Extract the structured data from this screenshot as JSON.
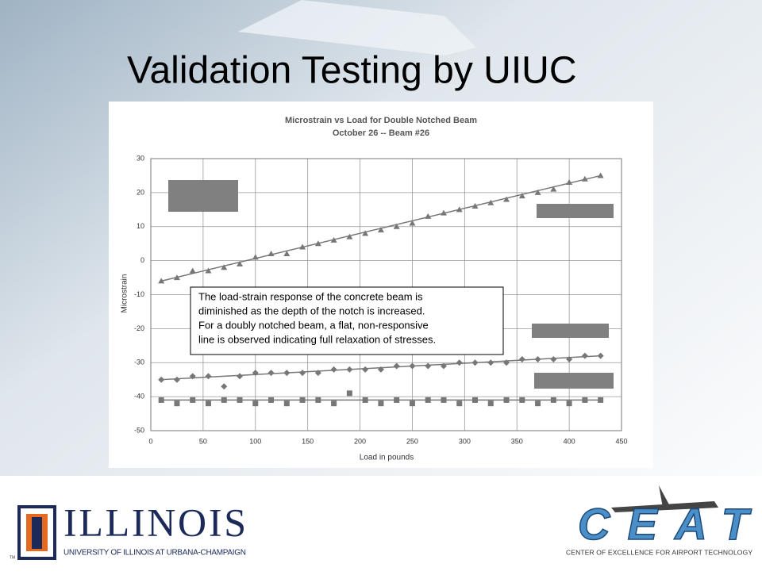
{
  "slide": {
    "title": "Validation Testing by UIUC"
  },
  "chart_data": {
    "type": "scatter",
    "title": "Microstrain vs Load for Double Notched Beam",
    "subtitle": "October 26 -- Beam #26",
    "x_label": "Load in pounds",
    "y_label": "Microstrain",
    "x": [
      10,
      25,
      40,
      55,
      70,
      85,
      100,
      115,
      130,
      145,
      160,
      175,
      190,
      205,
      220,
      235,
      250,
      265,
      280,
      295,
      310,
      325,
      340,
      355,
      370,
      385,
      400,
      415,
      430
    ],
    "series": [
      {
        "color": "#777777",
        "marker": "triangle",
        "values": [
          -6,
          -5,
          -3,
          -3,
          -2,
          -1,
          1,
          2,
          2,
          4,
          5,
          6,
          7,
          8,
          9,
          10,
          11,
          13,
          14,
          15,
          16,
          17,
          18,
          19,
          20,
          21,
          23,
          24,
          25
        ],
        "trend": [
          -6,
          25
        ]
      },
      {
        "color": "#777777",
        "marker": "diamond",
        "values": [
          -35,
          -35,
          -34,
          -34,
          -37,
          -34,
          -33,
          -33,
          -33,
          -33,
          -33,
          -32,
          -32,
          -32,
          -32,
          -31,
          -31,
          -31,
          -31,
          -30,
          -30,
          -30,
          -30,
          -29,
          -29,
          -29,
          -29,
          -28,
          -28
        ],
        "trend": [
          -35,
          -28
        ]
      },
      {
        "color": "#777777",
        "marker": "square",
        "values": [
          -41,
          -42,
          -41,
          -42,
          -41,
          -41,
          -42,
          -41,
          -42,
          -41,
          -41,
          -42,
          -39,
          -41,
          -42,
          -41,
          -42,
          -41,
          -41,
          -42,
          -41,
          -42,
          -41,
          -41,
          -42,
          -41,
          -42,
          -41,
          -41
        ],
        "trend": [
          -41,
          -41
        ]
      }
    ],
    "xlim": [
      0,
      450
    ],
    "xticks": [
      0,
      50,
      100,
      150,
      200,
      250,
      300,
      350,
      400,
      450
    ],
    "ylim": [
      -50,
      30
    ],
    "yticks": [
      -50,
      -40,
      -30,
      -20,
      -10,
      0,
      10,
      20,
      30
    ],
    "grid": true,
    "annotation": [
      "The load-strain response of the concrete beam is",
      "diminished as the depth of the notch is increased.",
      "For a doubly notched beam, a flat, non-responsive",
      "line is observed indicating full relaxation of stresses."
    ]
  },
  "logo_left": {
    "name": "ILLINOIS",
    "subtitle": "UNIVERSITY OF ILLINOIS AT URBANA-CHAMPAIGN",
    "tm": "TM"
  },
  "logo_right": {
    "name": "CEAT",
    "subtitle": "CENTER OF EXCELLENCE FOR AIRPORT TECHNOLOGY"
  }
}
